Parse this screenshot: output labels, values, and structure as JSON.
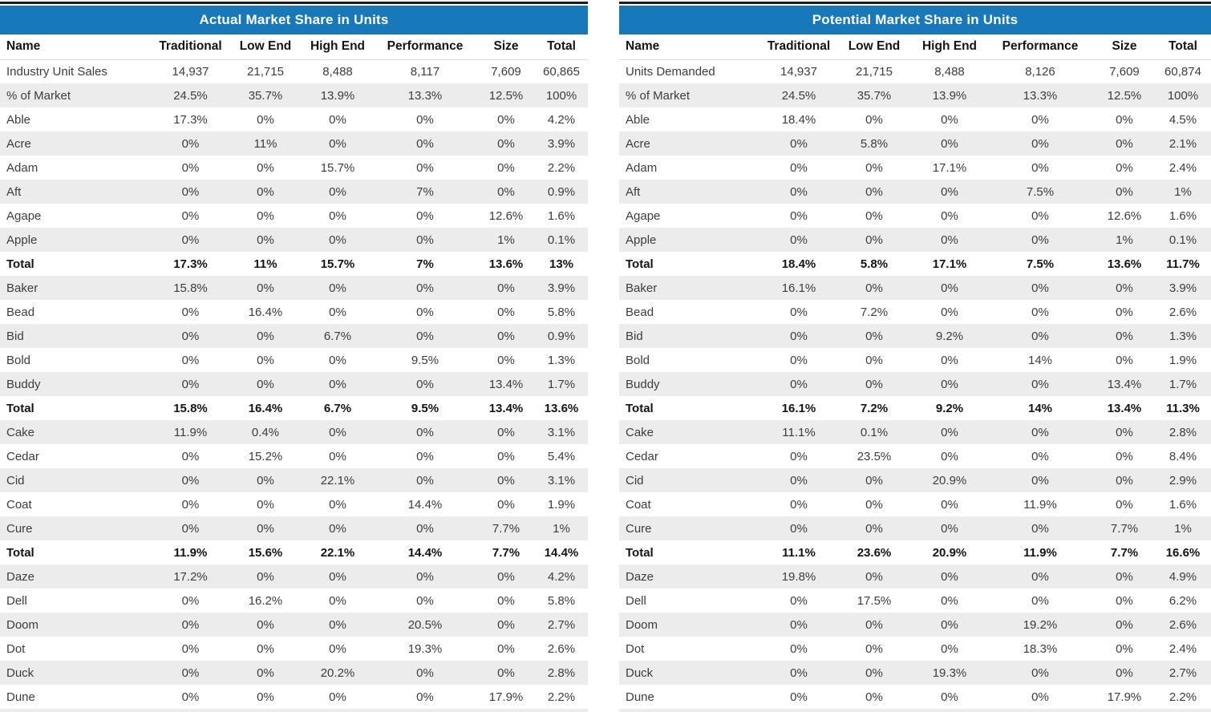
{
  "theme": {
    "title_bar_color": "#1779ba",
    "title_text_color": "#ffffff",
    "stripe_color": "#ececec",
    "top_border_color": "#1c1c1c",
    "body_text_color": "#3d3d3d",
    "bold_text_color": "#141414"
  },
  "columns": [
    "Name",
    "Traditional",
    "Low End",
    "High End",
    "Performance",
    "Size",
    "Total"
  ],
  "tables": [
    {
      "id": "actual",
      "title": "Actual Market Share in Units",
      "rows": [
        {
          "name": "Industry Unit Sales",
          "bold": false,
          "values": [
            "14,937",
            "21,715",
            "8,488",
            "8,117",
            "7,609",
            "60,865"
          ]
        },
        {
          "name": "% of Market",
          "bold": false,
          "values": [
            "24.5%",
            "35.7%",
            "13.9%",
            "13.3%",
            "12.5%",
            "100%"
          ]
        },
        {
          "name": "Able",
          "bold": false,
          "values": [
            "17.3%",
            "0%",
            "0%",
            "0%",
            "0%",
            "4.2%"
          ]
        },
        {
          "name": "Acre",
          "bold": false,
          "values": [
            "0%",
            "11%",
            "0%",
            "0%",
            "0%",
            "3.9%"
          ]
        },
        {
          "name": "Adam",
          "bold": false,
          "values": [
            "0%",
            "0%",
            "15.7%",
            "0%",
            "0%",
            "2.2%"
          ]
        },
        {
          "name": "Aft",
          "bold": false,
          "values": [
            "0%",
            "0%",
            "0%",
            "7%",
            "0%",
            "0.9%"
          ]
        },
        {
          "name": "Agape",
          "bold": false,
          "values": [
            "0%",
            "0%",
            "0%",
            "0%",
            "12.6%",
            "1.6%"
          ]
        },
        {
          "name": "Apple",
          "bold": false,
          "values": [
            "0%",
            "0%",
            "0%",
            "0%",
            "1%",
            "0.1%"
          ]
        },
        {
          "name": "Total",
          "bold": true,
          "values": [
            "17.3%",
            "11%",
            "15.7%",
            "7%",
            "13.6%",
            "13%"
          ]
        },
        {
          "name": "Baker",
          "bold": false,
          "values": [
            "15.8%",
            "0%",
            "0%",
            "0%",
            "0%",
            "3.9%"
          ]
        },
        {
          "name": "Bead",
          "bold": false,
          "values": [
            "0%",
            "16.4%",
            "0%",
            "0%",
            "0%",
            "5.8%"
          ]
        },
        {
          "name": "Bid",
          "bold": false,
          "values": [
            "0%",
            "0%",
            "6.7%",
            "0%",
            "0%",
            "0.9%"
          ]
        },
        {
          "name": "Bold",
          "bold": false,
          "values": [
            "0%",
            "0%",
            "0%",
            "9.5%",
            "0%",
            "1.3%"
          ]
        },
        {
          "name": "Buddy",
          "bold": false,
          "values": [
            "0%",
            "0%",
            "0%",
            "0%",
            "13.4%",
            "1.7%"
          ]
        },
        {
          "name": "Total",
          "bold": true,
          "values": [
            "15.8%",
            "16.4%",
            "6.7%",
            "9.5%",
            "13.4%",
            "13.6%"
          ]
        },
        {
          "name": "Cake",
          "bold": false,
          "values": [
            "11.9%",
            "0.4%",
            "0%",
            "0%",
            "0%",
            "3.1%"
          ]
        },
        {
          "name": "Cedar",
          "bold": false,
          "values": [
            "0%",
            "15.2%",
            "0%",
            "0%",
            "0%",
            "5.4%"
          ]
        },
        {
          "name": "Cid",
          "bold": false,
          "values": [
            "0%",
            "0%",
            "22.1%",
            "0%",
            "0%",
            "3.1%"
          ]
        },
        {
          "name": "Coat",
          "bold": false,
          "values": [
            "0%",
            "0%",
            "0%",
            "14.4%",
            "0%",
            "1.9%"
          ]
        },
        {
          "name": "Cure",
          "bold": false,
          "values": [
            "0%",
            "0%",
            "0%",
            "0%",
            "7.7%",
            "1%"
          ]
        },
        {
          "name": "Total",
          "bold": true,
          "values": [
            "11.9%",
            "15.6%",
            "22.1%",
            "14.4%",
            "7.7%",
            "14.4%"
          ]
        },
        {
          "name": "Daze",
          "bold": false,
          "values": [
            "17.2%",
            "0%",
            "0%",
            "0%",
            "0%",
            "4.2%"
          ]
        },
        {
          "name": "Dell",
          "bold": false,
          "values": [
            "0%",
            "16.2%",
            "0%",
            "0%",
            "0%",
            "5.8%"
          ]
        },
        {
          "name": "Doom",
          "bold": false,
          "values": [
            "0%",
            "0%",
            "0%",
            "20.5%",
            "0%",
            "2.7%"
          ]
        },
        {
          "name": "Dot",
          "bold": false,
          "values": [
            "0%",
            "0%",
            "0%",
            "19.3%",
            "0%",
            "2.6%"
          ]
        },
        {
          "name": "Duck",
          "bold": false,
          "values": [
            "0%",
            "0%",
            "20.2%",
            "0%",
            "0%",
            "2.8%"
          ]
        },
        {
          "name": "Dune",
          "bold": false,
          "values": [
            "0%",
            "0%",
            "0%",
            "0%",
            "17.9%",
            "2.2%"
          ]
        }
      ]
    },
    {
      "id": "potential",
      "title": "Potential Market Share in Units",
      "rows": [
        {
          "name": "Units Demanded",
          "bold": false,
          "values": [
            "14,937",
            "21,715",
            "8,488",
            "8,126",
            "7,609",
            "60,874"
          ]
        },
        {
          "name": "% of Market",
          "bold": false,
          "values": [
            "24.5%",
            "35.7%",
            "13.9%",
            "13.3%",
            "12.5%",
            "100%"
          ]
        },
        {
          "name": "Able",
          "bold": false,
          "values": [
            "18.4%",
            "0%",
            "0%",
            "0%",
            "0%",
            "4.5%"
          ]
        },
        {
          "name": "Acre",
          "bold": false,
          "values": [
            "0%",
            "5.8%",
            "0%",
            "0%",
            "0%",
            "2.1%"
          ]
        },
        {
          "name": "Adam",
          "bold": false,
          "values": [
            "0%",
            "0%",
            "17.1%",
            "0%",
            "0%",
            "2.4%"
          ]
        },
        {
          "name": "Aft",
          "bold": false,
          "values": [
            "0%",
            "0%",
            "0%",
            "7.5%",
            "0%",
            "1%"
          ]
        },
        {
          "name": "Agape",
          "bold": false,
          "values": [
            "0%",
            "0%",
            "0%",
            "0%",
            "12.6%",
            "1.6%"
          ]
        },
        {
          "name": "Apple",
          "bold": false,
          "values": [
            "0%",
            "0%",
            "0%",
            "0%",
            "1%",
            "0.1%"
          ]
        },
        {
          "name": "Total",
          "bold": true,
          "values": [
            "18.4%",
            "5.8%",
            "17.1%",
            "7.5%",
            "13.6%",
            "11.7%"
          ]
        },
        {
          "name": "Baker",
          "bold": false,
          "values": [
            "16.1%",
            "0%",
            "0%",
            "0%",
            "0%",
            "3.9%"
          ]
        },
        {
          "name": "Bead",
          "bold": false,
          "values": [
            "0%",
            "7.2%",
            "0%",
            "0%",
            "0%",
            "2.6%"
          ]
        },
        {
          "name": "Bid",
          "bold": false,
          "values": [
            "0%",
            "0%",
            "9.2%",
            "0%",
            "0%",
            "1.3%"
          ]
        },
        {
          "name": "Bold",
          "bold": false,
          "values": [
            "0%",
            "0%",
            "0%",
            "14%",
            "0%",
            "1.9%"
          ]
        },
        {
          "name": "Buddy",
          "bold": false,
          "values": [
            "0%",
            "0%",
            "0%",
            "0%",
            "13.4%",
            "1.7%"
          ]
        },
        {
          "name": "Total",
          "bold": true,
          "values": [
            "16.1%",
            "7.2%",
            "9.2%",
            "14%",
            "13.4%",
            "11.3%"
          ]
        },
        {
          "name": "Cake",
          "bold": false,
          "values": [
            "11.1%",
            "0.1%",
            "0%",
            "0%",
            "0%",
            "2.8%"
          ]
        },
        {
          "name": "Cedar",
          "bold": false,
          "values": [
            "0%",
            "23.5%",
            "0%",
            "0%",
            "0%",
            "8.4%"
          ]
        },
        {
          "name": "Cid",
          "bold": false,
          "values": [
            "0%",
            "0%",
            "20.9%",
            "0%",
            "0%",
            "2.9%"
          ]
        },
        {
          "name": "Coat",
          "bold": false,
          "values": [
            "0%",
            "0%",
            "0%",
            "11.9%",
            "0%",
            "1.6%"
          ]
        },
        {
          "name": "Cure",
          "bold": false,
          "values": [
            "0%",
            "0%",
            "0%",
            "0%",
            "7.7%",
            "1%"
          ]
        },
        {
          "name": "Total",
          "bold": true,
          "values": [
            "11.1%",
            "23.6%",
            "20.9%",
            "11.9%",
            "7.7%",
            "16.6%"
          ]
        },
        {
          "name": "Daze",
          "bold": false,
          "values": [
            "19.8%",
            "0%",
            "0%",
            "0%",
            "0%",
            "4.9%"
          ]
        },
        {
          "name": "Dell",
          "bold": false,
          "values": [
            "0%",
            "17.5%",
            "0%",
            "0%",
            "0%",
            "6.2%"
          ]
        },
        {
          "name": "Doom",
          "bold": false,
          "values": [
            "0%",
            "0%",
            "0%",
            "19.2%",
            "0%",
            "2.6%"
          ]
        },
        {
          "name": "Dot",
          "bold": false,
          "values": [
            "0%",
            "0%",
            "0%",
            "18.3%",
            "0%",
            "2.4%"
          ]
        },
        {
          "name": "Duck",
          "bold": false,
          "values": [
            "0%",
            "0%",
            "19.3%",
            "0%",
            "0%",
            "2.7%"
          ]
        },
        {
          "name": "Dune",
          "bold": false,
          "values": [
            "0%",
            "0%",
            "0%",
            "0%",
            "17.9%",
            "2.2%"
          ]
        }
      ]
    }
  ]
}
